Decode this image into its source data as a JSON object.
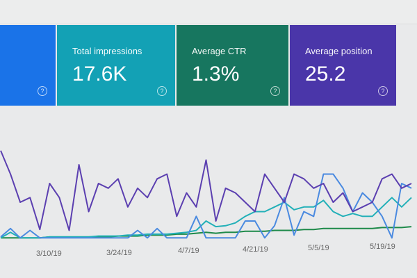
{
  "cards": [
    {
      "label": "",
      "value": "",
      "color": "#1a73e8",
      "help_icon": "question-circle-icon"
    },
    {
      "label": "Total impressions",
      "value": "17.6K",
      "color": "#13a1b5",
      "help_icon": "question-circle-icon"
    },
    {
      "label": "Average CTR",
      "value": "1.3%",
      "color": "#17765f",
      "help_icon": "question-circle-icon"
    },
    {
      "label": "Average position",
      "value": "25.2",
      "color": "#4a36a9",
      "help_icon": "question-circle-icon"
    }
  ],
  "help_glyph": "?",
  "chart_data": {
    "type": "line",
    "grid": false,
    "x_tick_labels": [
      "3/10/19",
      "3/24/19",
      "4/7/19",
      "4/21/19",
      "5/5/19",
      "5/19/19"
    ],
    "x": [
      "3/2/19",
      "3/4/19",
      "3/6/19",
      "3/8/19",
      "3/10/19",
      "3/12/19",
      "3/14/19",
      "3/16/19",
      "3/18/19",
      "3/20/19",
      "3/22/19",
      "3/24/19",
      "3/26/19",
      "3/28/19",
      "3/30/19",
      "4/1/19",
      "4/3/19",
      "4/5/19",
      "4/7/19",
      "4/9/19",
      "4/11/19",
      "4/13/19",
      "4/15/19",
      "4/17/19",
      "4/19/19",
      "4/21/19",
      "4/23/19",
      "4/25/19",
      "4/27/19",
      "4/29/19",
      "5/1/19",
      "5/3/19",
      "5/5/19",
      "5/7/19",
      "5/9/19",
      "5/11/19",
      "5/13/19",
      "5/15/19",
      "5/17/19",
      "5/19/19",
      "5/21/19",
      "5/23/19",
      "5/25/19"
    ],
    "ylim": [
      0,
      100
    ],
    "series": [
      {
        "color": "#5b3fb0",
        "values": [
          95,
          70,
          40,
          45,
          11,
          60,
          45,
          10,
          80,
          30,
          60,
          55,
          65,
          35,
          55,
          45,
          65,
          70,
          25,
          50,
          35,
          85,
          20,
          55,
          50,
          40,
          30,
          70,
          55,
          40,
          70,
          65,
          55,
          60,
          40,
          50,
          30,
          35,
          40,
          65,
          70,
          55,
          60
        ]
      },
      {
        "color": "#4a8ae0",
        "values": [
          3,
          12,
          2,
          10,
          2,
          2,
          2,
          2,
          2,
          2,
          2,
          2,
          2,
          2,
          10,
          2,
          12,
          2,
          2,
          2,
          25,
          2,
          2,
          2,
          2,
          20,
          20,
          2,
          15,
          45,
          5,
          30,
          25,
          70,
          70,
          55,
          30,
          50,
          40,
          25,
          2,
          60,
          55
        ]
      },
      {
        "color": "#22b0b8",
        "values": [
          2,
          8,
          2,
          2,
          2,
          3,
          3,
          3,
          3,
          3,
          4,
          4,
          4,
          5,
          5,
          6,
          6,
          6,
          7,
          8,
          10,
          20,
          14,
          15,
          18,
          25,
          30,
          30,
          35,
          40,
          32,
          35,
          35,
          42,
          30,
          25,
          28,
          25,
          25,
          35,
          45,
          35,
          45
        ]
      },
      {
        "color": "#1e8a4a",
        "values": [
          2,
          2,
          2,
          2,
          2,
          3,
          3,
          3,
          3,
          3,
          3,
          3,
          4,
          4,
          4,
          5,
          5,
          5,
          6,
          6,
          7,
          8,
          7,
          8,
          8,
          9,
          9,
          9,
          10,
          10,
          10,
          11,
          11,
          12,
          12,
          12,
          12,
          12,
          12,
          13,
          13,
          13,
          14
        ]
      }
    ]
  }
}
